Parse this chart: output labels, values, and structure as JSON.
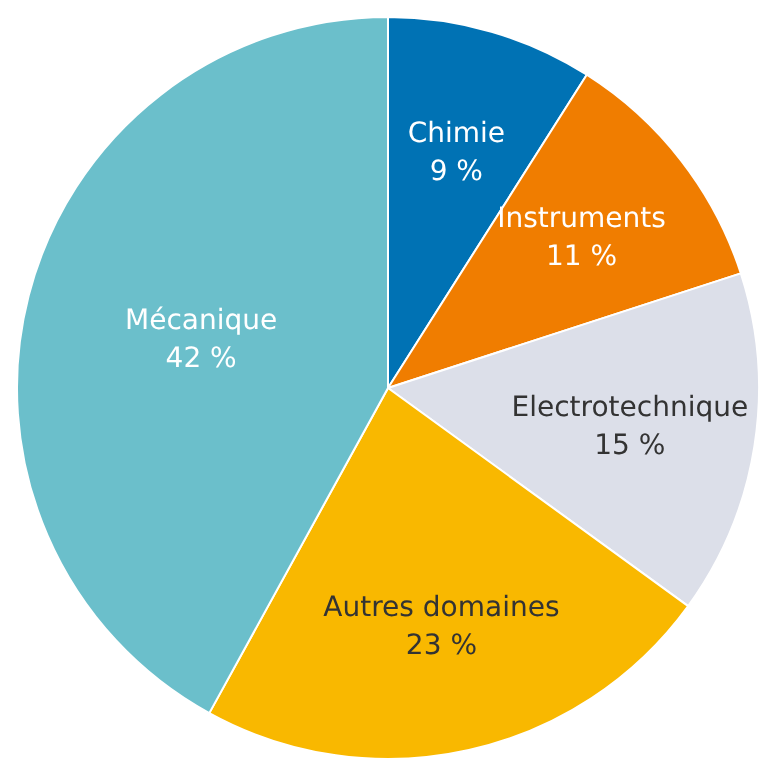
{
  "chart_data": {
    "type": "pie",
    "categories": [
      "Chimie",
      "Instruments",
      "Electrotechnique",
      "Autres domaines",
      "Mécanique"
    ],
    "values": [
      9,
      11,
      15,
      23,
      42
    ],
    "colors": [
      "#0072b4",
      "#f07d00",
      "#dcdfe9",
      "#f9b800",
      "#6bbfcb"
    ],
    "value_labels": [
      "9 %",
      "11 %",
      "15 %",
      "23 %",
      "42 %"
    ],
    "legend": false
  }
}
